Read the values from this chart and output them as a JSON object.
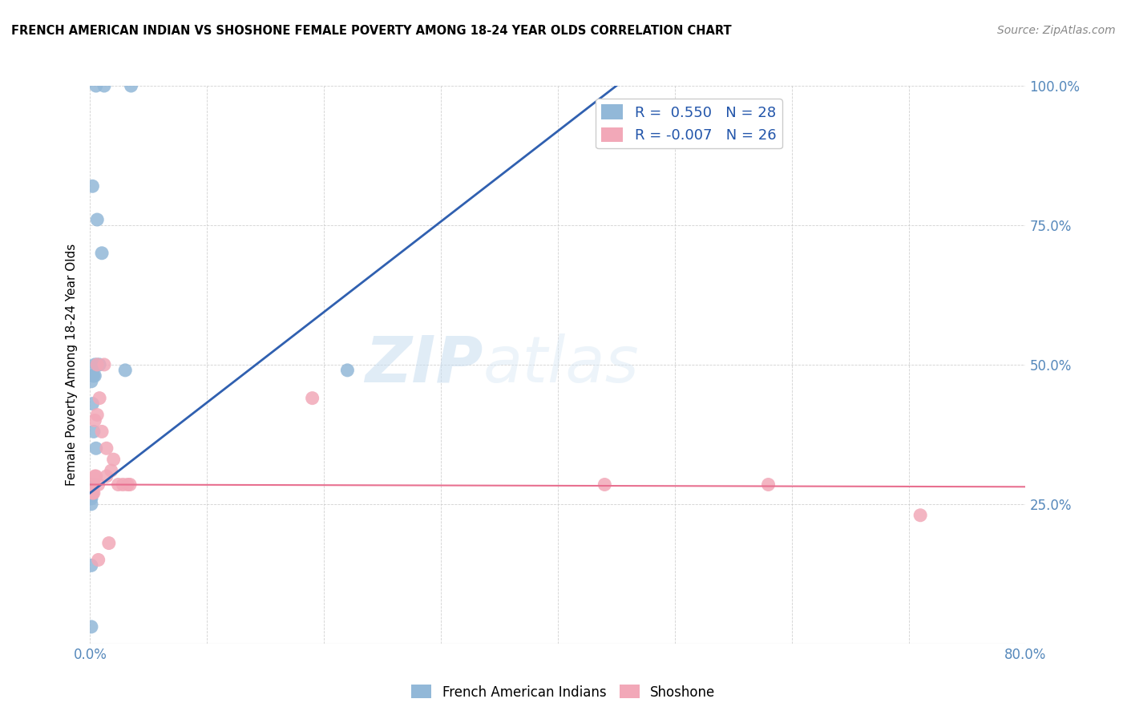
{
  "title": "FRENCH AMERICAN INDIAN VS SHOSHONE FEMALE POVERTY AMONG 18-24 YEAR OLDS CORRELATION CHART",
  "source": "Source: ZipAtlas.com",
  "ylabel": "Female Poverty Among 18-24 Year Olds",
  "xlim": [
    0.0,
    0.8
  ],
  "ylim": [
    0.0,
    1.0
  ],
  "xticks": [
    0.0,
    0.1,
    0.2,
    0.3,
    0.4,
    0.5,
    0.6,
    0.7,
    0.8
  ],
  "xticklabels": [
    "0.0%",
    "",
    "",
    "",
    "",
    "",
    "",
    "",
    "80.0%"
  ],
  "yticks": [
    0.0,
    0.25,
    0.5,
    0.75,
    1.0
  ],
  "yticklabels_right": [
    "",
    "25.0%",
    "50.0%",
    "75.0%",
    "100.0%"
  ],
  "blue_r": 0.55,
  "blue_n": 28,
  "pink_r": -0.007,
  "pink_n": 26,
  "blue_color": "#92b8d8",
  "pink_color": "#f2a8b8",
  "blue_line_color": "#3060b0",
  "pink_line_color": "#e87090",
  "watermark_zip": "ZIP",
  "watermark_atlas": "atlas",
  "legend_label_blue": "French American Indians",
  "legend_label_pink": "Shoshone",
  "blue_line_x": [
    0.0,
    0.45
  ],
  "blue_line_y": [
    0.27,
    1.0
  ],
  "pink_line_x": [
    0.0,
    0.8
  ],
  "pink_line_y": [
    0.285,
    0.281
  ],
  "blue_points_x": [
    0.005,
    0.012,
    0.035,
    0.002,
    0.006,
    0.01,
    0.004,
    0.008,
    0.003,
    0.006,
    0.004,
    0.002,
    0.001,
    0.002,
    0.003,
    0.005,
    0.001,
    0.003,
    0.001,
    0.002,
    0.001,
    0.001,
    0.001,
    0.001,
    0.22,
    0.03,
    0.001,
    0.001
  ],
  "blue_points_y": [
    1.0,
    1.0,
    1.0,
    0.82,
    0.76,
    0.7,
    0.5,
    0.5,
    0.48,
    0.5,
    0.48,
    0.48,
    0.47,
    0.43,
    0.38,
    0.35,
    0.285,
    0.285,
    0.275,
    0.27,
    0.265,
    0.265,
    0.26,
    0.25,
    0.49,
    0.49,
    0.14,
    0.03
  ],
  "pink_points_x": [
    0.006,
    0.012,
    0.008,
    0.006,
    0.004,
    0.01,
    0.014,
    0.02,
    0.018,
    0.014,
    0.004,
    0.005,
    0.007,
    0.028,
    0.032,
    0.024,
    0.034,
    0.016,
    0.007,
    0.003,
    0.002,
    0.003,
    0.44,
    0.58,
    0.71,
    0.19
  ],
  "pink_points_y": [
    0.5,
    0.5,
    0.44,
    0.41,
    0.4,
    0.38,
    0.35,
    0.33,
    0.31,
    0.3,
    0.3,
    0.3,
    0.285,
    0.285,
    0.285,
    0.285,
    0.285,
    0.18,
    0.15,
    0.285,
    0.27,
    0.27,
    0.285,
    0.285,
    0.23,
    0.44
  ]
}
